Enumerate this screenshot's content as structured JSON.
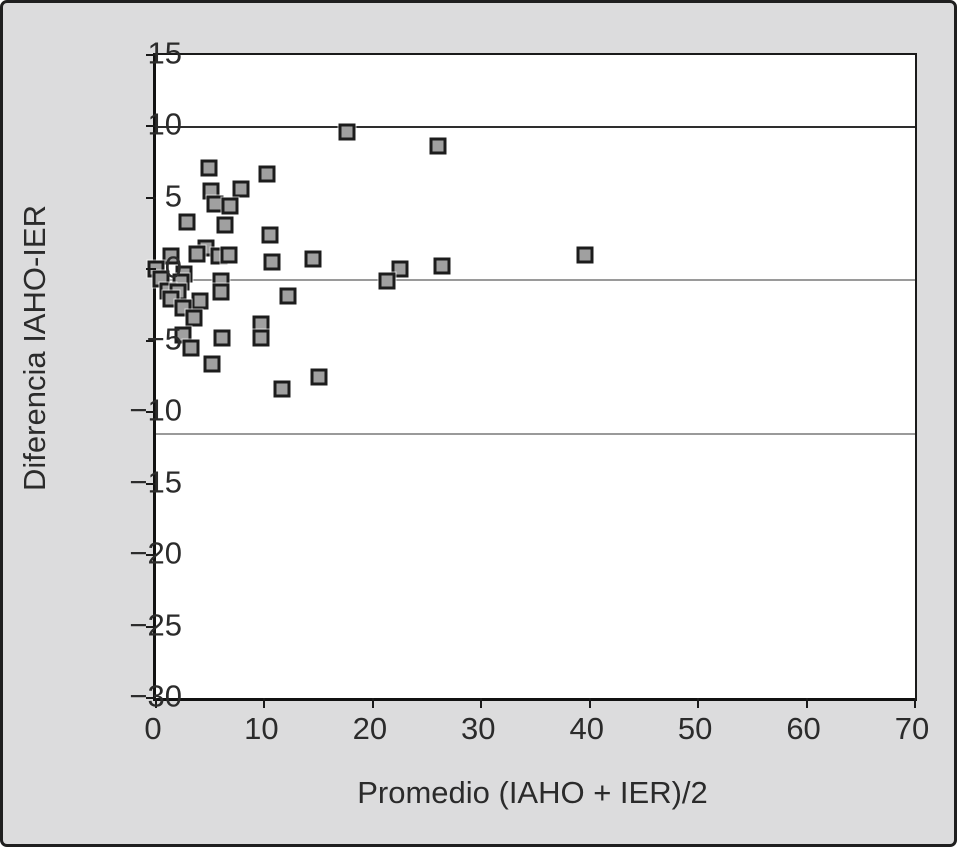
{
  "figure": {
    "background_color": "#dcdcdd",
    "plot_background_color": "#ffffff",
    "frame_color": "#1f1f1f",
    "marker_fill_color": "#a0a0a0",
    "marker_border_color": "#1c1c1c"
  },
  "chart_data": {
    "type": "scatter",
    "title": "",
    "xlabel": "Promedio (IAHO + IER)/2",
    "ylabel": "Diferencia IAHO-IER",
    "xlim": [
      0,
      70
    ],
    "ylim": [
      -30,
      15
    ],
    "x_ticks": [
      0,
      10,
      20,
      30,
      40,
      50,
      60,
      70
    ],
    "x_tick_labels": [
      "0",
      "10",
      "20",
      "30",
      "40",
      "50",
      "60",
      "70"
    ],
    "y_ticks": [
      15,
      10,
      5,
      0,
      -5,
      -10,
      -15,
      -20,
      -25,
      -30
    ],
    "y_tick_labels": [
      "15",
      "10",
      "5",
      "0",
      "−5",
      "−10",
      "−15",
      "−20",
      "−25",
      "−30"
    ],
    "grid": false,
    "legend": null,
    "marker_shape": "square",
    "reference_lines": [
      {
        "name": "upper-limit-of-agreement",
        "y": 9.95,
        "color": "#2e2e2e",
        "thickness": 2
      },
      {
        "name": "mean-difference",
        "y": -0.72,
        "color": "#9a9a9a",
        "thickness": 2
      },
      {
        "name": "lower-limit-of-agreement",
        "y": -11.5,
        "color": "#9a9a9a",
        "thickness": 2
      }
    ],
    "points": [
      {
        "x": 17.6,
        "y": 9.6
      },
      {
        "x": 26.0,
        "y": 8.6
      },
      {
        "x": 4.9,
        "y": 7.1
      },
      {
        "x": 10.2,
        "y": 6.7
      },
      {
        "x": 5.1,
        "y": 5.5
      },
      {
        "x": 7.8,
        "y": 5.6
      },
      {
        "x": 5.4,
        "y": 4.6
      },
      {
        "x": 6.8,
        "y": 4.4
      },
      {
        "x": 2.9,
        "y": 3.3
      },
      {
        "x": 6.4,
        "y": 3.1
      },
      {
        "x": 10.5,
        "y": 2.4
      },
      {
        "x": 4.6,
        "y": 1.5
      },
      {
        "x": 3.8,
        "y": 1.1
      },
      {
        "x": 1.4,
        "y": 0.9
      },
      {
        "x": 5.8,
        "y": 0.9
      },
      {
        "x": 6.7,
        "y": 1.0
      },
      {
        "x": 10.7,
        "y": 0.5
      },
      {
        "x": 14.5,
        "y": 0.7
      },
      {
        "x": 22.5,
        "y": 0.0
      },
      {
        "x": 26.4,
        "y": 0.2
      },
      {
        "x": 39.6,
        "y": 1.0
      },
      {
        "x": 0.0,
        "y": 0.0
      },
      {
        "x": 0.5,
        "y": -0.7
      },
      {
        "x": 2.6,
        "y": -0.3
      },
      {
        "x": 2.3,
        "y": -0.9
      },
      {
        "x": 1.1,
        "y": -1.5
      },
      {
        "x": 2.0,
        "y": -1.6
      },
      {
        "x": 1.4,
        "y": -2.1
      },
      {
        "x": 4.1,
        "y": -2.2
      },
      {
        "x": 2.5,
        "y": -2.7
      },
      {
        "x": 3.5,
        "y": -3.4
      },
      {
        "x": 6.0,
        "y": -0.8
      },
      {
        "x": 6.0,
        "y": -1.6
      },
      {
        "x": 21.3,
        "y": -0.8
      },
      {
        "x": 12.2,
        "y": -1.9
      },
      {
        "x": 9.7,
        "y": -3.8
      },
      {
        "x": 9.7,
        "y": -4.8
      },
      {
        "x": 2.5,
        "y": -4.6
      },
      {
        "x": 3.2,
        "y": -5.5
      },
      {
        "x": 6.1,
        "y": -4.8
      },
      {
        "x": 5.2,
        "y": -6.6
      },
      {
        "x": 11.6,
        "y": -8.4
      },
      {
        "x": 15.0,
        "y": -7.5
      }
    ]
  }
}
